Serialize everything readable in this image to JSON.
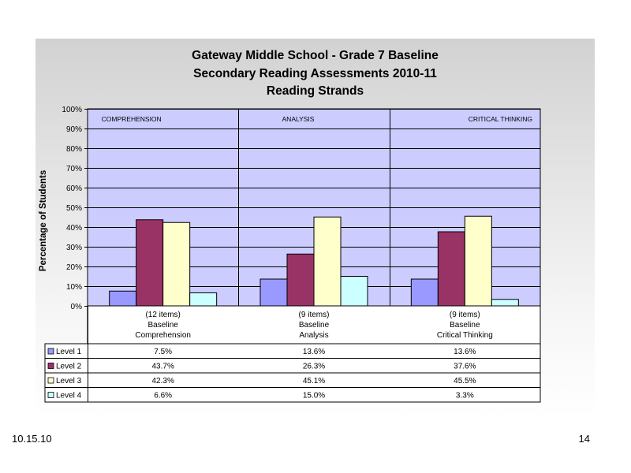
{
  "title_lines": [
    "Gateway Middle School - Grade 7 Baseline",
    "Secondary Reading Assessments 2010-11",
    "Reading Strands"
  ],
  "footer": {
    "date": "10.15.10",
    "page": "14"
  },
  "chart_data": {
    "type": "bar",
    "title": "Gateway Middle School - Grade 7 Baseline Secondary Reading Assessments 2010-11 Reading Strands",
    "ylabel": "Percentage of Students",
    "ylim": [
      0,
      100
    ],
    "yticks": [
      "0%",
      "10%",
      "20%",
      "30%",
      "40%",
      "50%",
      "60%",
      "70%",
      "80%",
      "90%",
      "100%"
    ],
    "grid": true,
    "section_labels": [
      "COMPREHENSION",
      "ANALYSIS",
      "CRITICAL THINKING"
    ],
    "categories": [
      [
        "(12 items)",
        "Baseline",
        "Comprehension"
      ],
      [
        "(9 items)",
        "Baseline",
        "Analysis"
      ],
      [
        "(9 items)",
        "Baseline",
        "Critical Thinking"
      ]
    ],
    "series": [
      {
        "name": "Level 1",
        "color": "#9999ff",
        "values": [
          7.5,
          13.6,
          13.6
        ],
        "labels": [
          "7.5%",
          "13.6%",
          "13.6%"
        ]
      },
      {
        "name": "Level 2",
        "color": "#993366",
        "values": [
          43.7,
          26.3,
          37.6
        ],
        "labels": [
          "43.7%",
          "26.3%",
          "37.6%"
        ]
      },
      {
        "name": "Level 3",
        "color": "#ffffcc",
        "values": [
          42.3,
          45.1,
          45.5
        ],
        "labels": [
          "42.3%",
          "45.1%",
          "45.5%"
        ]
      },
      {
        "name": "Level 4",
        "color": "#ccffff",
        "values": [
          6.6,
          15.0,
          3.3
        ],
        "labels": [
          "6.6%",
          "15.0%",
          "3.3%"
        ]
      }
    ],
    "plot_background": "#ccccff"
  }
}
